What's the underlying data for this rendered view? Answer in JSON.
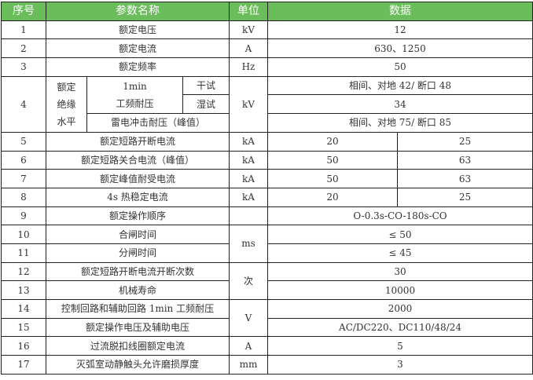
{
  "header_color": "#6abd5a",
  "headers": {
    "no": "序号",
    "name": "参数名称",
    "unit": "单位",
    "data": "数据"
  },
  "rows": [
    {
      "no": "1",
      "name": "额定电压",
      "unit": "kV",
      "value": "12"
    },
    {
      "no": "2",
      "name": "额定电流",
      "unit": "A",
      "value": "630、1250"
    },
    {
      "no": "3",
      "name": "额定频率",
      "unit": "Hz",
      "value": "50"
    },
    {
      "no": "4",
      "group": [
        "额定",
        "绝缘",
        "水平"
      ],
      "sub_line1": "1min",
      "sub_line2": "工频耐压",
      "dry": "干试",
      "wet": "湿试",
      "lightning": "雷电冲击耐压（峰值）",
      "unit": "kV",
      "dry_value": "相间、对地 42/ 断口 48",
      "wet_value": "34",
      "lightning_value": "相间、对地 75/ 断口 85"
    },
    {
      "no": "5",
      "name": "额定短路开断电流",
      "unit": "kA",
      "value_a": "20",
      "value_b": "25"
    },
    {
      "no": "6",
      "name": "额定短路关合电流（峰值）",
      "unit": "kA",
      "value_a": "50",
      "value_b": "63"
    },
    {
      "no": "7",
      "name": "额定峰值耐受电流",
      "unit": "kA",
      "value_a": "50",
      "value_b": "63"
    },
    {
      "no": "8",
      "name": "4s 热稳定电流",
      "unit": "kA",
      "value_a": "20",
      "value_b": "25"
    },
    {
      "no": "9",
      "name": "额定操作顺序",
      "unit": "",
      "value": "O-0.3s-CO-180s-CO"
    },
    {
      "no": "10",
      "name": "合闸时间",
      "unit": "ms",
      "value": "≤ 50"
    },
    {
      "no": "11",
      "name": "分闸时间",
      "value": "≤ 45"
    },
    {
      "no": "12",
      "name": "额定短路开断电流开断次数",
      "unit": "次",
      "value": "30"
    },
    {
      "no": "13",
      "name": "机械寿命",
      "value": "10000"
    },
    {
      "no": "14",
      "name": "控制回路和辅助回路 1min 工频耐压",
      "unit": "V",
      "value": "2000"
    },
    {
      "no": "15",
      "name": "额定操作电压及辅助电压",
      "value": "AC/DC220、DC110/48/24"
    },
    {
      "no": "16",
      "name": "过流脱扣线圈额定电流",
      "unit": "A",
      "value": "5"
    },
    {
      "no": "17",
      "name": "灭弧室动静触头允许磨损厚度",
      "unit": "mm",
      "value": "3"
    }
  ]
}
